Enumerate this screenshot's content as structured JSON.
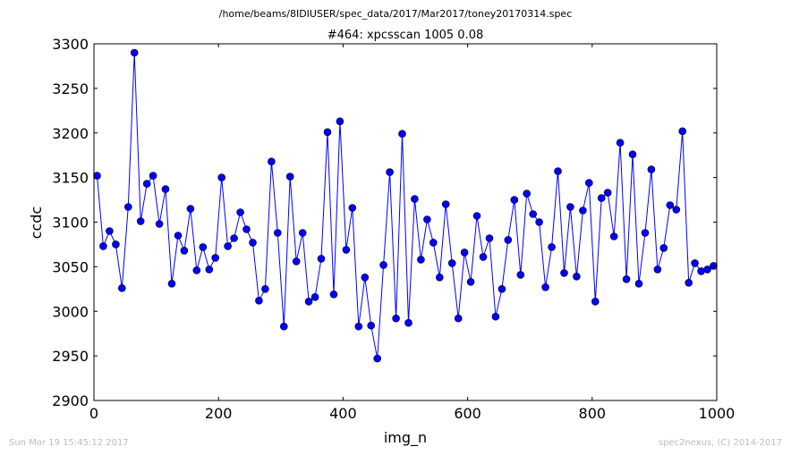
{
  "footer": {
    "timestamp": "Sun Mar 19 15:45:12 2017",
    "credit": "spec2nexus, (C) 2014-2017"
  },
  "colors": {
    "series": "#0000ff",
    "marker_fill": "#0000ff"
  },
  "chart_data": {
    "type": "line",
    "suptitle": "/home/beams/8IDIUSER/spec_data/2017/Mar2017/toney20170314.spec",
    "title": "#464: xpcsscan 1005 0.08",
    "xlabel": "img_n",
    "ylabel": "ccdc",
    "xlim": [
      0,
      1000
    ],
    "ylim": [
      2900,
      3300
    ],
    "xticks": [
      0,
      200,
      400,
      600,
      800,
      1000
    ],
    "yticks": [
      2900,
      2950,
      3000,
      3050,
      3100,
      3150,
      3200,
      3250,
      3300
    ],
    "grid": false,
    "markers": true,
    "series": [
      {
        "x": [
          5,
          15,
          25,
          35,
          45,
          55,
          65,
          75,
          85,
          95,
          105,
          115,
          125,
          135,
          145,
          155,
          165,
          175,
          185,
          195,
          205,
          215,
          225,
          235,
          245,
          255,
          265,
          275,
          285,
          295,
          305,
          315,
          325,
          335,
          345,
          355,
          365,
          375,
          385,
          395,
          405,
          415,
          425,
          435,
          445,
          455,
          465,
          475,
          485,
          495,
          505,
          515,
          525,
          535,
          545,
          555,
          565,
          575,
          585,
          595,
          605,
          615,
          625,
          635,
          645,
          655,
          665,
          675,
          685,
          695,
          705,
          715,
          725,
          735,
          745,
          755,
          765,
          775,
          785,
          795,
          805,
          815,
          825,
          835,
          845,
          855,
          865,
          875,
          885,
          895,
          905,
          915,
          925,
          935,
          945,
          955,
          965,
          975,
          985,
          995
        ],
        "values": [
          3152,
          3073,
          3090,
          3075,
          3026,
          3117,
          3290,
          3101,
          3143,
          3152,
          3098,
          3137,
          3031,
          3085,
          3068,
          3115,
          3046,
          3072,
          3047,
          3060,
          3150,
          3073,
          3082,
          3111,
          3092,
          3077,
          3012,
          3025,
          3168,
          3088,
          2983,
          3151,
          3056,
          3088,
          3011,
          3016,
          3059,
          3201,
          3019,
          3213,
          3069,
          3116,
          2983,
          3038,
          2984,
          2947,
          3052,
          3156,
          2992,
          3199,
          2987,
          3126,
          3058,
          3103,
          3077,
          3038,
          3120,
          3054,
          2992,
          3066,
          3033,
          3107,
          3061,
          3082,
          2994,
          3025,
          3080,
          3125,
          3041,
          3132,
          3109,
          3100,
          3027,
          3072,
          3157,
          3043,
          3117,
          3039,
          3113,
          3144,
          3011,
          3127,
          3133,
          3084,
          3189,
          3036,
          3176,
          3031,
          3088,
          3159,
          3047,
          3071,
          3119,
          3114,
          3202,
          3032,
          3054,
          3045,
          3047,
          3051
        ]
      }
    ]
  }
}
